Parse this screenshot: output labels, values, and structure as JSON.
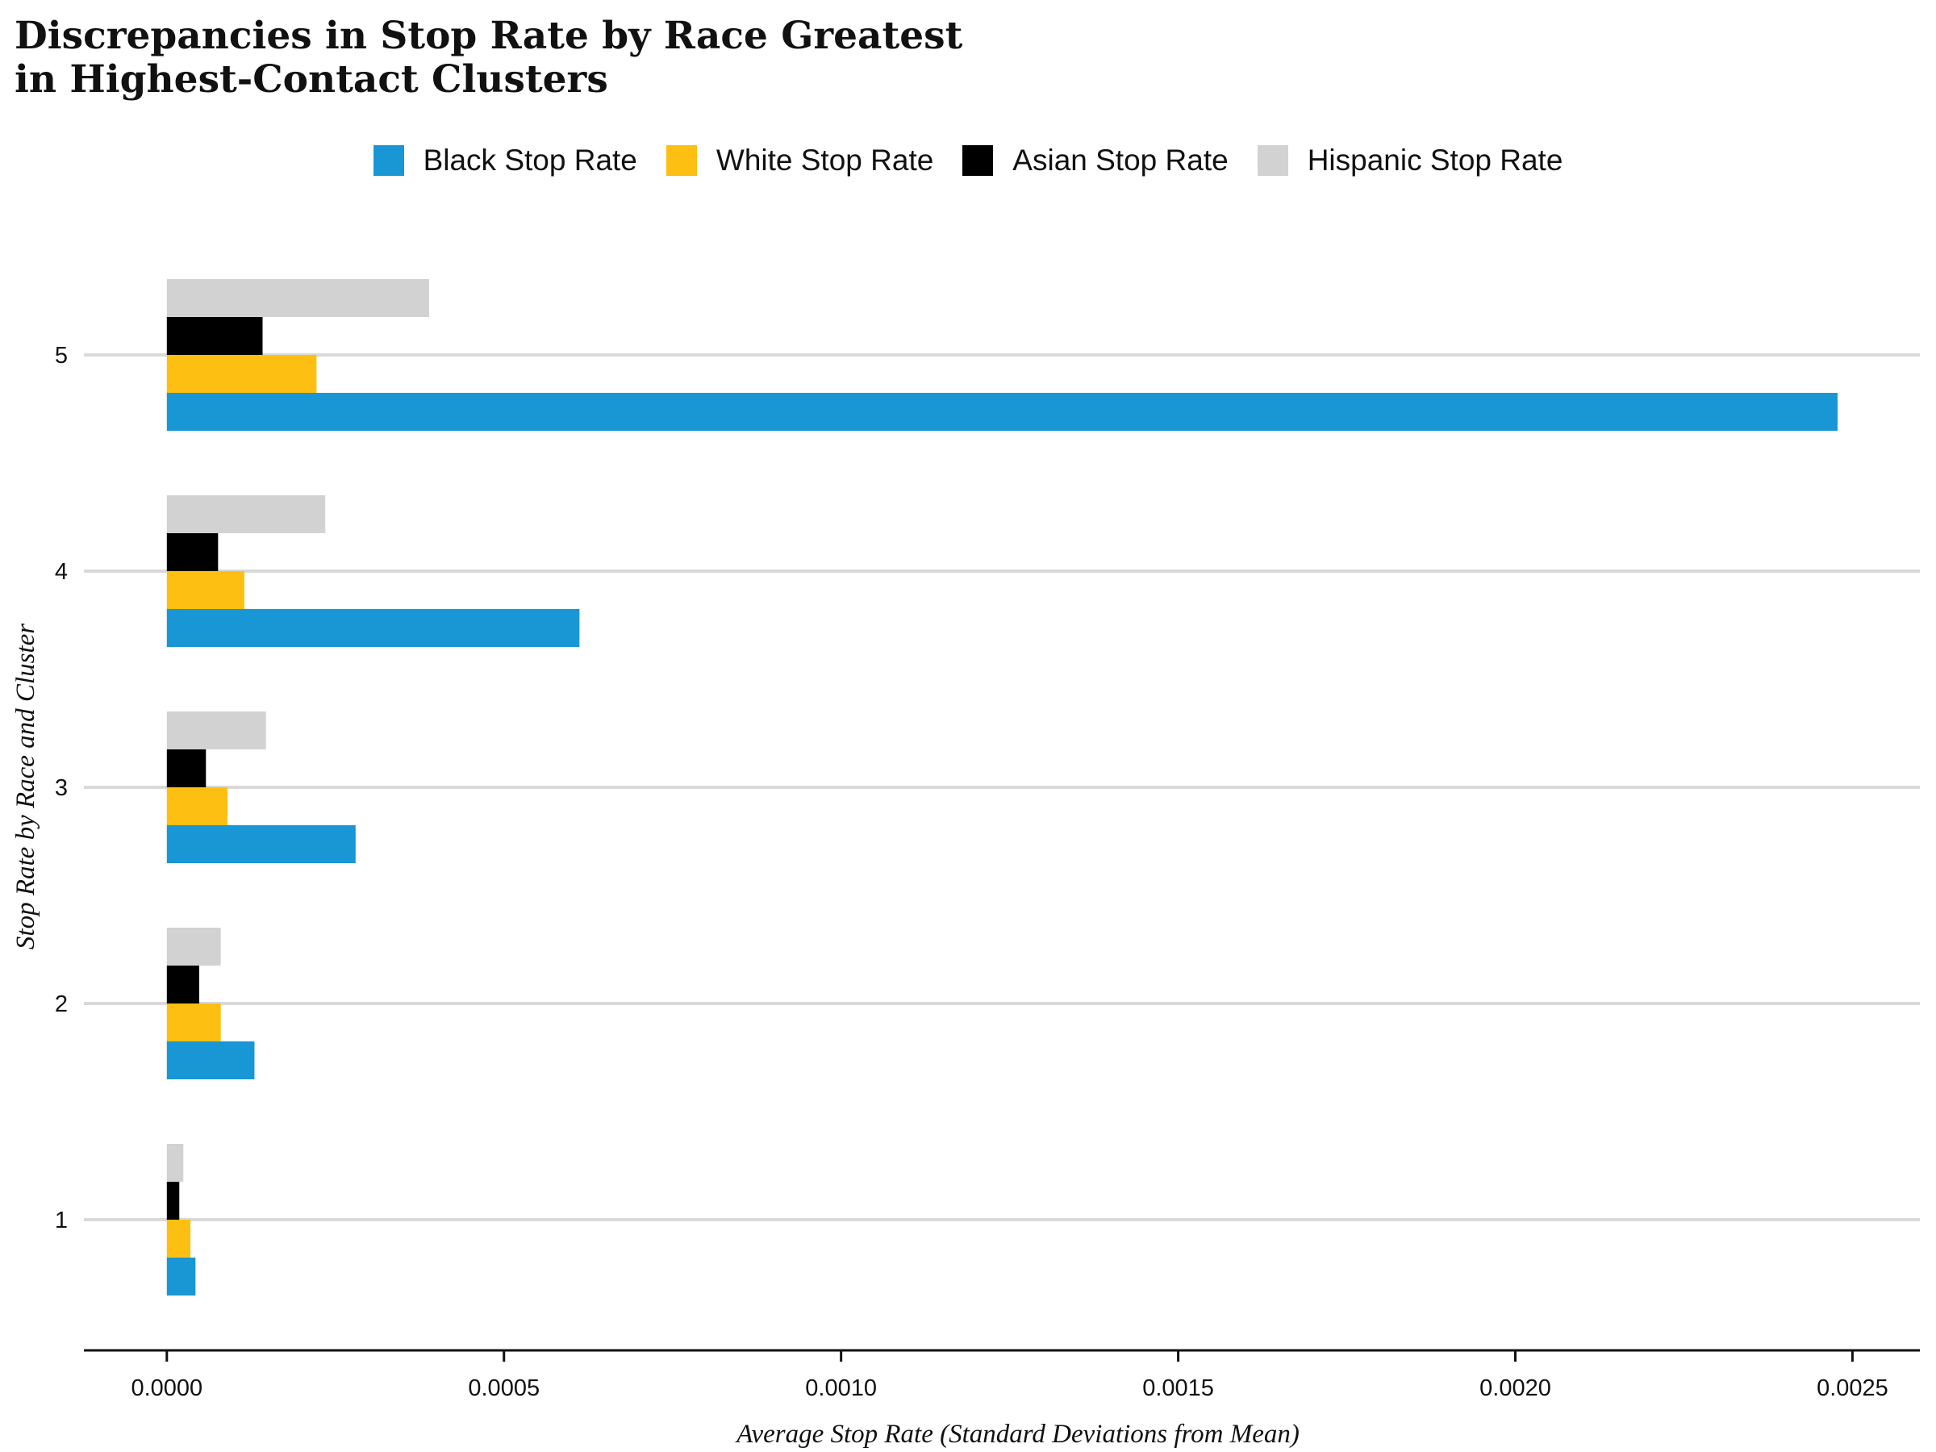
{
  "title_lines": [
    "Discrepancies in Stop Rate by Race Greatest",
    "in Highest-Contact Clusters"
  ],
  "chart_data": {
    "type": "bar",
    "orientation": "horizontal",
    "title": "Discrepancies in Stop Rate by Race Greatest in Highest-Contact Clusters",
    "xlabel": "Average Stop Rate (Standard Deviations from Mean)",
    "ylabel": "Stop Rate by Race and Cluster",
    "categories": [
      "1",
      "2",
      "3",
      "4",
      "5"
    ],
    "xlim": [
      -0.000123,
      0.0026
    ],
    "xticks": [
      "0.0000",
      "0.0005",
      "0.0010",
      "0.0015",
      "0.0020",
      "0.0025"
    ],
    "xtick_values": [
      0,
      0.0005,
      0.001,
      0.0015,
      0.002,
      0.0025
    ],
    "legend_position": "top",
    "grid": "horizontal",
    "series": [
      {
        "name": "Black Stop Rate",
        "color": "#1897d4",
        "values": [
          4.25e-05,
          0.00013,
          0.00028,
          0.000612,
          0.002478
        ]
      },
      {
        "name": "White Stop Rate",
        "color": "#fdbf11",
        "values": [
          3.5e-05,
          8e-05,
          9e-05,
          0.000115,
          0.000222
        ]
      },
      {
        "name": "Asian Stop Rate",
        "color": "#000000",
        "values": [
          1.85e-05,
          4.8e-05,
          5.8e-05,
          7.6e-05,
          0.000142
        ]
      },
      {
        "name": "Hispanic Stop Rate",
        "color": "#d2d2d2",
        "values": [
          2.45e-05,
          8e-05,
          0.000147,
          0.000235,
          0.000389
        ]
      }
    ]
  }
}
